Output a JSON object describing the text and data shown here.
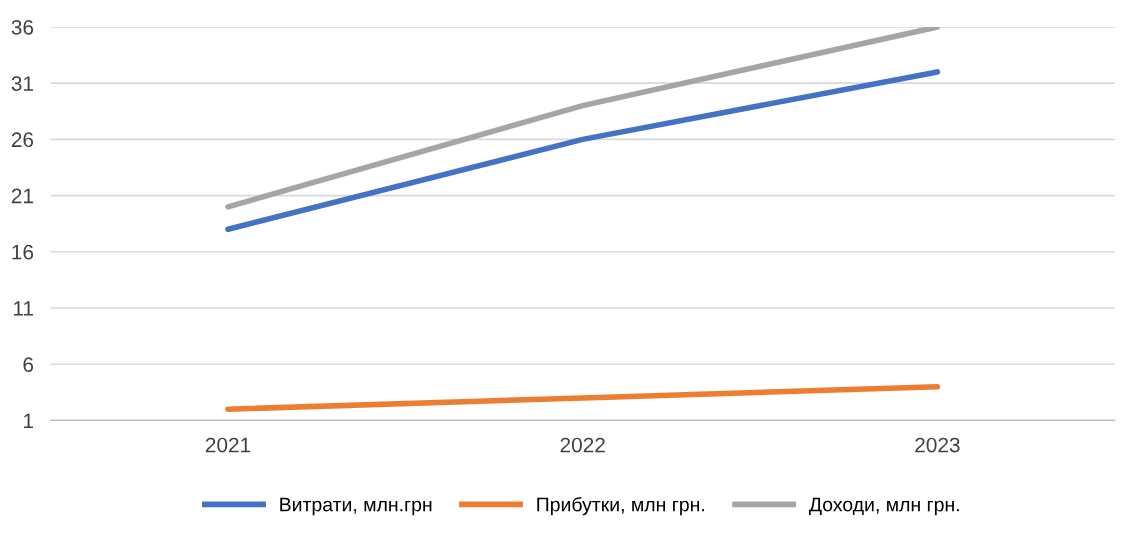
{
  "chart_data": {
    "type": "line",
    "categories": [
      "2021",
      "2022",
      "2023"
    ],
    "series": [
      {
        "name": "Витрати, млн.грн",
        "color": "#4472c4",
        "values": [
          18,
          26,
          32
        ]
      },
      {
        "name": "Прибутки, млн грн.",
        "color": "#ed7d31",
        "values": [
          2,
          3,
          4
        ]
      },
      {
        "name": "Доходи, млн грн.",
        "color": "#a5a5a5",
        "values": [
          20,
          29,
          36
        ]
      }
    ],
    "ylim": [
      1,
      36
    ],
    "yticks": [
      1,
      6,
      11,
      16,
      21,
      26,
      31,
      36
    ],
    "grid": "y",
    "legend": "bottom",
    "marker": "none",
    "line_style": "solid"
  }
}
